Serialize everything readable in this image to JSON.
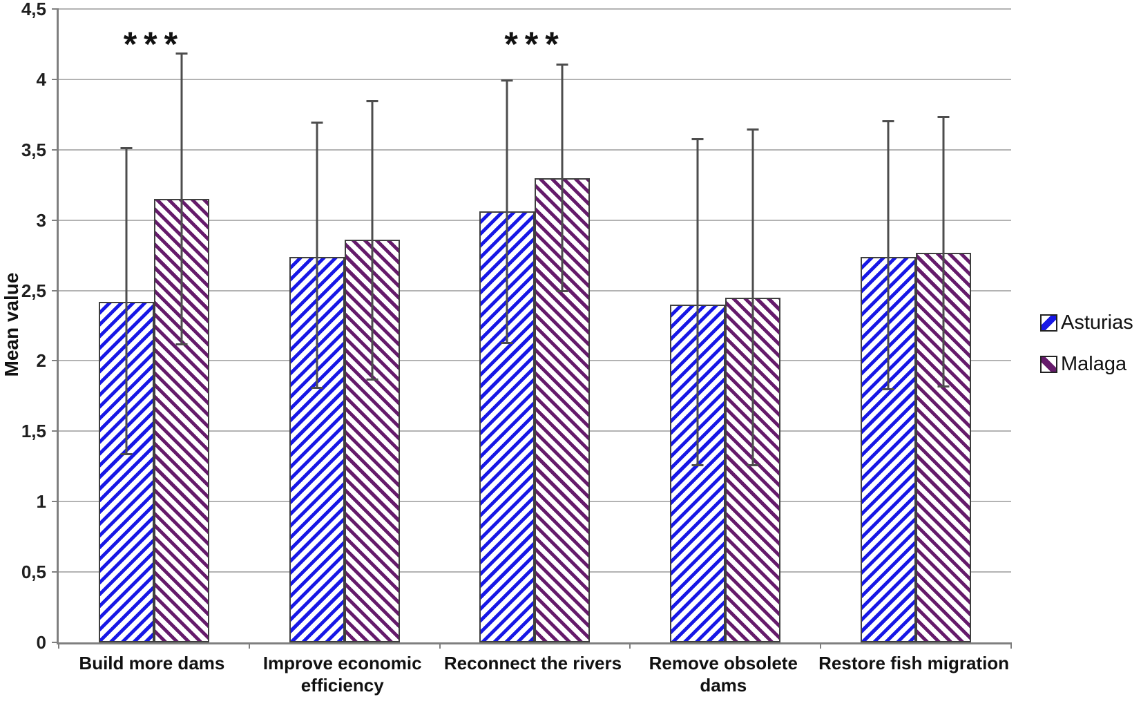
{
  "chart_data": {
    "type": "bar",
    "title": "",
    "ylabel": "Mean value",
    "xlabel": "",
    "categories": [
      "Build more dams",
      "Improve economic\nefficiency",
      "Reconnect the rivers",
      "Remove obsolete\ndams",
      "Restore fish migration"
    ],
    "series": [
      {
        "name": "Asturias",
        "values": [
          2.42,
          2.74,
          3.06,
          2.4,
          2.74
        ],
        "err_low": [
          1.33,
          1.8,
          2.12,
          1.25,
          1.79
        ],
        "err_high": [
          3.52,
          3.7,
          4.0,
          3.58,
          3.71
        ],
        "color": "#1717e6",
        "hatch": "/"
      },
      {
        "name": "Malaga",
        "values": [
          3.15,
          2.86,
          3.3,
          2.45,
          2.77
        ],
        "err_low": [
          2.11,
          1.86,
          2.49,
          1.25,
          1.81
        ],
        "err_high": [
          4.19,
          3.85,
          4.11,
          3.65,
          3.74
        ],
        "color": "#651b6b",
        "hatch": "\\"
      }
    ],
    "annotations": [
      {
        "text": "***",
        "category_index": 0
      },
      {
        "text": "***",
        "category_index": 2
      }
    ],
    "ylim": [
      0,
      4.5
    ],
    "ytick_step": 0.5,
    "ytick_labels": [
      "0",
      "0,5",
      "1",
      "1,5",
      "2",
      "2,5",
      "3",
      "3,5",
      "4",
      "4,5"
    ],
    "decimal_separator": ",",
    "grid": true,
    "legend_position": "right",
    "colors": {
      "grid": "#b3b3b3",
      "axis": "#7f7f7f",
      "error_bar": "#4d4d4d",
      "bar_border": "#3f3f3f",
      "text": "#1a1a1a"
    }
  }
}
